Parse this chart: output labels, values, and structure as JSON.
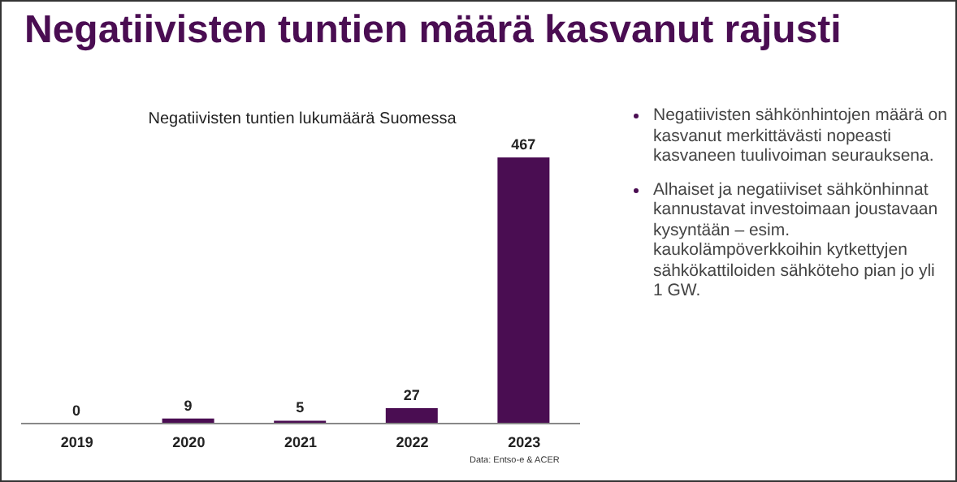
{
  "chart_data": {
    "type": "bar",
    "title": "Negatiivisten tuntien määrä kasvanut rajusti",
    "subtitle": "Negatiivisten tuntien lukumäärä Suomessa",
    "categories": [
      "2019",
      "2020",
      "2021",
      "2022",
      "2023"
    ],
    "values": [
      0,
      9,
      5,
      27,
      467
    ],
    "color": "#4a0d52",
    "data_labels": true,
    "annotations": [
      "Negatiivisten sähkönhintojen määrä on kasvanut merkittävästi nopeasti kasvaneen tuulivoiman seurauksena.",
      "Alhaiset ja negatiiviset sähkönhinnat kannustavat investoimaan joustavaan kysyntään – esim. kaukolämpöverkkoihin kytkettyjen sähkökattiloiden sähköteho pian jo yli 1 GW.",
      "Data: Entso-e & ACER"
    ]
  }
}
